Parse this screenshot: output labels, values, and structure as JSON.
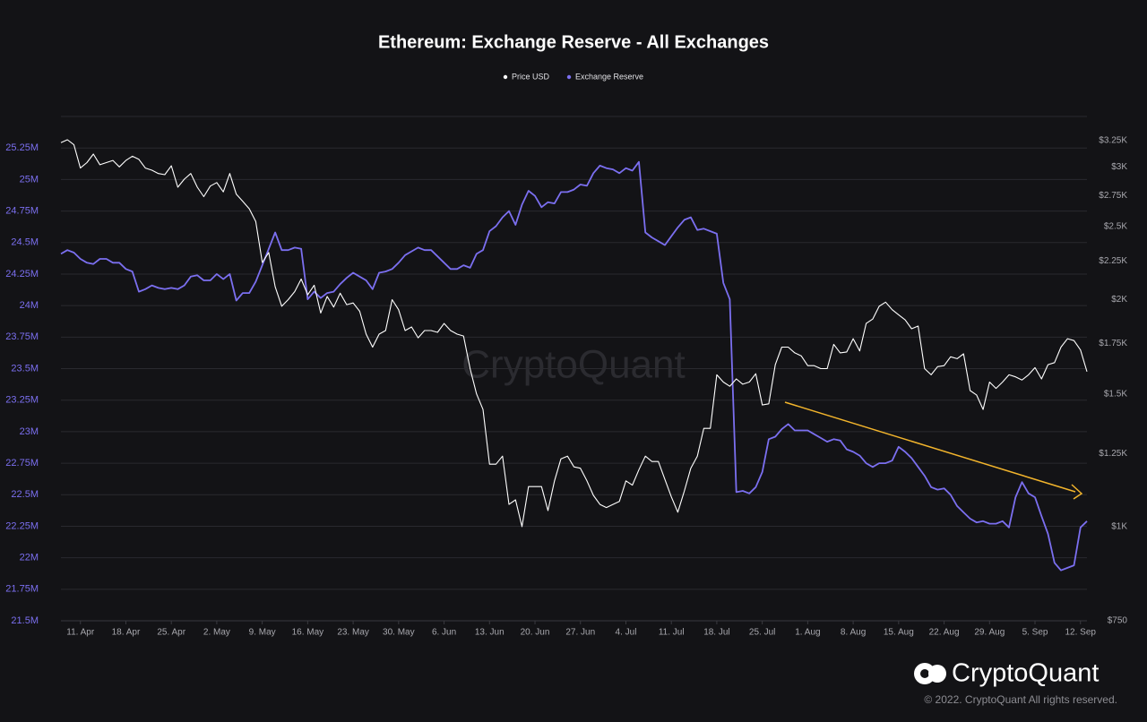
{
  "chart_data": {
    "type": "line",
    "title": "Ethereum: Exchange Reserve - All Exchanges",
    "watermark": "CryptoQuant",
    "logo_text": "CryptoQuant",
    "copyright": "© 2022. CryptoQuant All rights reserved.",
    "x": [
      "8. Apr",
      "9. Apr",
      "10. Apr",
      "11. Apr",
      "12. Apr",
      "13. Apr",
      "14. Apr",
      "15. Apr",
      "16. Apr",
      "17. Apr",
      "18. Apr",
      "19. Apr",
      "20. Apr",
      "21. Apr",
      "22. Apr",
      "23. Apr",
      "24. Apr",
      "25. Apr",
      "26. Apr",
      "27. Apr",
      "28. Apr",
      "29. Apr",
      "30. Apr",
      "1. May",
      "2. May",
      "3. May",
      "4. May",
      "5. May",
      "6. May",
      "7. May",
      "8. May",
      "9. May",
      "10. May",
      "11. May",
      "12. May",
      "13. May",
      "14. May",
      "15. May",
      "16. May",
      "17. May",
      "18. May",
      "19. May",
      "20. May",
      "21. May",
      "22. May",
      "23. May",
      "24. May",
      "25. May",
      "26. May",
      "27. May",
      "28. May",
      "29. May",
      "30. May",
      "31. May",
      "1. Jun",
      "2. Jun",
      "3. Jun",
      "4. Jun",
      "5. Jun",
      "6. Jun",
      "7. Jun",
      "8. Jun",
      "9. Jun",
      "10. Jun",
      "11. Jun",
      "12. Jun",
      "13. Jun",
      "14. Jun",
      "15. Jun",
      "16. Jun",
      "17. Jun",
      "18. Jun",
      "19. Jun",
      "20. Jun",
      "21. Jun",
      "22. Jun",
      "23. Jun",
      "24. Jun",
      "25. Jun",
      "26. Jun",
      "27. Jun",
      "28. Jun",
      "29. Jun",
      "30. Jun",
      "1. Jul",
      "2. Jul",
      "3. Jul",
      "4. Jul",
      "5. Jul",
      "6. Jul",
      "7. Jul",
      "8. Jul",
      "9. Jul",
      "10. Jul",
      "11. Jul",
      "12. Jul",
      "13. Jul",
      "14. Jul",
      "15. Jul",
      "16. Jul",
      "17. Jul",
      "18. Jul",
      "19. Jul",
      "20. Jul",
      "21. Jul",
      "22. Jul",
      "23. Jul",
      "24. Jul",
      "25. Jul",
      "26. Jul",
      "27. Jul",
      "28. Jul",
      "29. Jul",
      "30. Jul",
      "31. Jul",
      "1. Aug",
      "2. Aug",
      "3. Aug",
      "4. Aug",
      "5. Aug",
      "6. Aug",
      "7. Aug",
      "8. Aug",
      "9. Aug",
      "10. Aug",
      "11. Aug",
      "12. Aug",
      "13. Aug",
      "14. Aug",
      "15. Aug",
      "16. Aug",
      "17. Aug",
      "18. Aug",
      "19. Aug",
      "20. Aug",
      "21. Aug",
      "22. Aug",
      "23. Aug",
      "24. Aug",
      "25. Aug",
      "26. Aug",
      "27. Aug",
      "28. Aug",
      "29. Aug",
      "30. Aug",
      "31. Aug",
      "1. Sep",
      "2. Sep",
      "3. Sep",
      "4. Sep",
      "5. Sep",
      "6. Sep",
      "7. Sep",
      "8. Sep",
      "9. Sep",
      "10. Sep",
      "11. Sep",
      "12. Sep",
      "13. Sep"
    ],
    "xticks": [
      "11. Apr",
      "18. Apr",
      "25. Apr",
      "2. May",
      "9. May",
      "16. May",
      "23. May",
      "30. May",
      "6. Jun",
      "13. Jun",
      "20. Jun",
      "27. Jun",
      "4. Jul",
      "11. Jul",
      "18. Jul",
      "25. Jul",
      "1. Aug",
      "8. Aug",
      "15. Aug",
      "22. Aug",
      "29. Aug",
      "5. Sep",
      "12. Sep"
    ],
    "series": [
      {
        "name": "Exchange Reserve",
        "color": "#7b6ff0",
        "values": [
          24410000,
          24440000,
          24420000,
          24370000,
          24340000,
          24330000,
          24370000,
          24370000,
          24340000,
          24340000,
          24290000,
          24270000,
          24110000,
          24130000,
          24160000,
          24140000,
          24130000,
          24140000,
          24130000,
          24160000,
          24230000,
          24240000,
          24200000,
          24200000,
          24250000,
          24210000,
          24250000,
          24040000,
          24100000,
          24100000,
          24190000,
          24320000,
          24450000,
          24580000,
          24440000,
          24440000,
          24460000,
          24450000,
          24050000,
          24110000,
          24060000,
          24100000,
          24110000,
          24170000,
          24220000,
          24260000,
          24230000,
          24200000,
          24130000,
          24260000,
          24270000,
          24290000,
          24340000,
          24400000,
          24430000,
          24460000,
          24440000,
          24440000,
          24390000,
          24340000,
          24290000,
          24290000,
          24320000,
          24300000,
          24410000,
          24440000,
          24590000,
          24630000,
          24700000,
          24750000,
          24640000,
          24800000,
          24910000,
          24870000,
          24780000,
          24820000,
          24810000,
          24900000,
          24900000,
          24920000,
          24960000,
          24950000,
          25050000,
          25110000,
          25090000,
          25080000,
          25050000,
          25090000,
          25070000,
          25140000,
          24580000,
          24540000,
          24510000,
          24480000,
          24550000,
          24620000,
          24680000,
          24700000,
          24600000,
          24610000,
          24590000,
          24570000,
          24180000,
          24050000,
          22520000,
          22530000,
          22510000,
          22560000,
          22680000,
          22940000,
          22960000,
          23020000,
          23060000,
          23010000,
          23010000,
          23010000,
          22980000,
          22950000,
          22920000,
          22940000,
          22930000,
          22860000,
          22840000,
          22810000,
          22750000,
          22720000,
          22750000,
          22750000,
          22770000,
          22880000,
          22840000,
          22790000,
          22720000,
          22650000,
          22560000,
          22540000,
          22550000,
          22500000,
          22410000,
          22360000,
          22310000,
          22280000,
          22290000,
          22270000,
          22270000,
          22290000,
          22240000,
          22480000,
          22600000,
          22510000,
          22480000,
          22330000,
          22190000,
          21960000,
          21900000,
          21920000,
          21940000,
          22240000,
          22290000
        ]
      },
      {
        "name": "Price USD",
        "color": "#ffffff",
        "axis": "y2",
        "values": [
          3230,
          3260,
          3210,
          2990,
          3040,
          3120,
          3020,
          3040,
          3060,
          3000,
          3060,
          3100,
          3070,
          2990,
          2970,
          2940,
          2930,
          3010,
          2820,
          2890,
          2940,
          2820,
          2740,
          2830,
          2860,
          2780,
          2940,
          2760,
          2700,
          2640,
          2540,
          2240,
          2310,
          2080,
          1960,
          2000,
          2050,
          2130,
          2030,
          2090,
          1920,
          2020,
          1955,
          2040,
          1970,
          1980,
          1930,
          1800,
          1730,
          1800,
          1820,
          2000,
          1940,
          1820,
          1840,
          1780,
          1820,
          1820,
          1810,
          1860,
          1820,
          1800,
          1790,
          1620,
          1500,
          1430,
          1210,
          1210,
          1240,
          1070,
          1085,
          1000,
          1130,
          1130,
          1130,
          1050,
          1150,
          1230,
          1240,
          1200,
          1195,
          1150,
          1100,
          1070,
          1060,
          1070,
          1080,
          1150,
          1135,
          1190,
          1240,
          1220,
          1220,
          1155,
          1095,
          1045,
          1115,
          1195,
          1240,
          1350,
          1350,
          1590,
          1555,
          1535,
          1570,
          1545,
          1555,
          1595,
          1450,
          1455,
          1640,
          1730,
          1730,
          1700,
          1685,
          1635,
          1635,
          1620,
          1620,
          1745,
          1700,
          1705,
          1775,
          1710,
          1860,
          1885,
          1960,
          1985,
          1940,
          1910,
          1880,
          1830,
          1845,
          1620,
          1590,
          1630,
          1635,
          1680,
          1670,
          1695,
          1515,
          1495,
          1430,
          1555,
          1525,
          1555,
          1590,
          1580,
          1565,
          1590,
          1625,
          1570,
          1640,
          1650,
          1730,
          1775,
          1765,
          1715,
          1605
        ]
      }
    ],
    "ylim": [
      21500000,
      25500000
    ],
    "yticks": [
      {
        "value": 21500000,
        "label": "21.5M"
      },
      {
        "value": 21750000,
        "label": "21.75M"
      },
      {
        "value": 22000000,
        "label": "22M"
      },
      {
        "value": 22250000,
        "label": "22.25M"
      },
      {
        "value": 22500000,
        "label": "22.5M"
      },
      {
        "value": 22750000,
        "label": "22.75M"
      },
      {
        "value": 23000000,
        "label": "23M"
      },
      {
        "value": 23250000,
        "label": "23.25M"
      },
      {
        "value": 23500000,
        "label": "23.5M"
      },
      {
        "value": 23750000,
        "label": "23.75M"
      },
      {
        "value": 24000000,
        "label": "24M"
      },
      {
        "value": 24250000,
        "label": "24.25M"
      },
      {
        "value": 24500000,
        "label": "24.5M"
      },
      {
        "value": 24750000,
        "label": "24.75M"
      },
      {
        "value": 25000000,
        "label": "25M"
      },
      {
        "value": 25250000,
        "label": "25.25M"
      }
    ],
    "y2lim": [
      750,
      3500
    ],
    "y2log": true,
    "y2ticks": [
      {
        "value": 750,
        "label": "$750"
      },
      {
        "value": 1000,
        "label": "$1K"
      },
      {
        "value": 1250,
        "label": "$1.25K"
      },
      {
        "value": 1500,
        "label": "$1.5K"
      },
      {
        "value": 1750,
        "label": "$1.75K"
      },
      {
        "value": 2000,
        "label": "$2K"
      },
      {
        "value": 2250,
        "label": "$2.25K"
      },
      {
        "value": 2500,
        "label": "$2.5K"
      },
      {
        "value": 2750,
        "label": "$2.75K"
      },
      {
        "value": 3000,
        "label": "$3K"
      },
      {
        "value": 3250,
        "label": "$3.25K"
      }
    ],
    "grid": true,
    "legend": "top"
  }
}
